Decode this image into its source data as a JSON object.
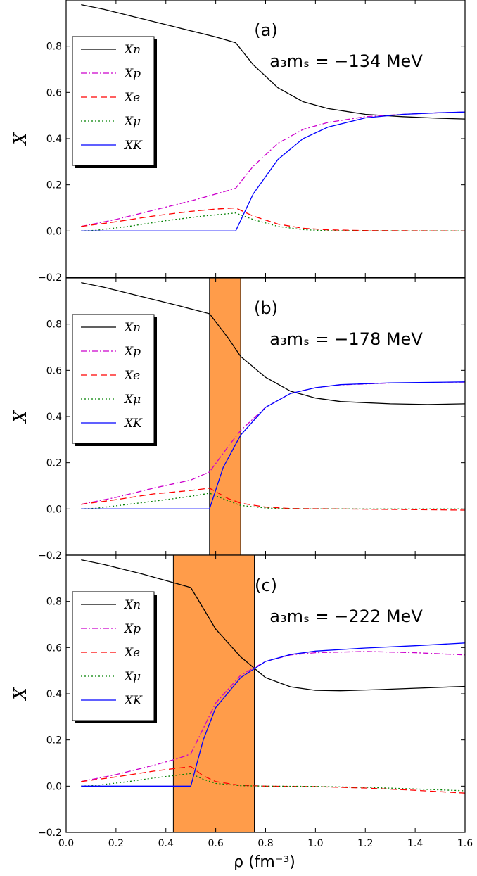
{
  "figure": {
    "xlabel": "ρ (fm⁻³)",
    "band_color": "#FF9C4A",
    "shared_x_ticks": [
      "0.0",
      "0.2",
      "0.4",
      "0.6",
      "0.8",
      "1.0",
      "1.2",
      "1.4",
      "1.6"
    ]
  },
  "chart_data": [
    {
      "type": "line",
      "panel_label": "(a)",
      "annotation": "a₃mₛ = −134 MeV",
      "ylabel": "X",
      "xlim": [
        0.0,
        1.6
      ],
      "ylim": [
        -0.2,
        1.0
      ],
      "y_ticks": [
        "−0.2",
        "0.0",
        "0.2",
        "0.4",
        "0.6",
        "0.8"
      ],
      "legend_position": "upper-left",
      "shaded_band": null,
      "series": [
        {
          "name": "Xn",
          "color": "#000000",
          "dash": "solid",
          "points": [
            [
              0.06,
              0.98
            ],
            [
              0.15,
              0.96
            ],
            [
              0.3,
              0.92
            ],
            [
              0.45,
              0.88
            ],
            [
              0.6,
              0.84
            ],
            [
              0.68,
              0.815
            ],
            [
              0.75,
              0.72
            ],
            [
              0.85,
              0.62
            ],
            [
              0.95,
              0.56
            ],
            [
              1.05,
              0.53
            ],
            [
              1.2,
              0.505
            ],
            [
              1.35,
              0.495
            ],
            [
              1.5,
              0.488
            ],
            [
              1.6,
              0.485
            ]
          ]
        },
        {
          "name": "Xp",
          "color": "#CC00CC",
          "dash": "dashdot",
          "points": [
            [
              0.06,
              0.02
            ],
            [
              0.2,
              0.05
            ],
            [
              0.35,
              0.09
            ],
            [
              0.5,
              0.13
            ],
            [
              0.6,
              0.16
            ],
            [
              0.68,
              0.185
            ],
            [
              0.75,
              0.28
            ],
            [
              0.85,
              0.38
            ],
            [
              0.95,
              0.44
            ],
            [
              1.05,
              0.47
            ],
            [
              1.2,
              0.495
            ],
            [
              1.35,
              0.505
            ],
            [
              1.5,
              0.512
            ],
            [
              1.6,
              0.515
            ]
          ]
        },
        {
          "name": "Xe",
          "color": "#FF0000",
          "dash": "dashed",
          "points": [
            [
              0.06,
              0.02
            ],
            [
              0.2,
              0.04
            ],
            [
              0.35,
              0.065
            ],
            [
              0.5,
              0.085
            ],
            [
              0.6,
              0.095
            ],
            [
              0.68,
              0.1
            ],
            [
              0.75,
              0.065
            ],
            [
              0.85,
              0.03
            ],
            [
              0.95,
              0.012
            ],
            [
              1.05,
              0.005
            ],
            [
              1.2,
              0.002
            ],
            [
              1.4,
              0.001
            ],
            [
              1.6,
              0.0
            ]
          ]
        },
        {
          "name": "Xμ",
          "color": "#008000",
          "dash": "dotted",
          "points": [
            [
              0.06,
              0.0
            ],
            [
              0.12,
              0.003
            ],
            [
              0.25,
              0.02
            ],
            [
              0.4,
              0.045
            ],
            [
              0.55,
              0.065
            ],
            [
              0.68,
              0.078
            ],
            [
              0.75,
              0.05
            ],
            [
              0.85,
              0.02
            ],
            [
              0.95,
              0.006
            ],
            [
              1.05,
              0.001
            ],
            [
              1.2,
              0.0
            ],
            [
              1.6,
              0.0
            ]
          ]
        },
        {
          "name": "XK",
          "color": "#0000FF",
          "dash": "solid",
          "points": [
            [
              0.06,
              0.0
            ],
            [
              0.68,
              0.0
            ],
            [
              0.75,
              0.16
            ],
            [
              0.85,
              0.31
            ],
            [
              0.95,
              0.4
            ],
            [
              1.05,
              0.45
            ],
            [
              1.2,
              0.49
            ],
            [
              1.35,
              0.505
            ],
            [
              1.5,
              0.512
            ],
            [
              1.6,
              0.515
            ]
          ]
        }
      ]
    },
    {
      "type": "line",
      "panel_label": "(b)",
      "annotation": "a₃mₛ = −178 MeV",
      "ylabel": "X",
      "xlim": [
        0.0,
        1.6
      ],
      "ylim": [
        -0.2,
        1.0
      ],
      "y_ticks": [
        "−0.2",
        "0.0",
        "0.2",
        "0.4",
        "0.6",
        "0.8"
      ],
      "legend_position": "upper-left",
      "shaded_band": [
        0.575,
        0.7
      ],
      "series": [
        {
          "name": "Xn",
          "color": "#000000",
          "dash": "solid",
          "points": [
            [
              0.06,
              0.98
            ],
            [
              0.15,
              0.96
            ],
            [
              0.3,
              0.92
            ],
            [
              0.45,
              0.88
            ],
            [
              0.575,
              0.845
            ],
            [
              0.65,
              0.74
            ],
            [
              0.7,
              0.66
            ],
            [
              0.8,
              0.57
            ],
            [
              0.9,
              0.51
            ],
            [
              1.0,
              0.48
            ],
            [
              1.1,
              0.465
            ],
            [
              1.3,
              0.455
            ],
            [
              1.45,
              0.452
            ],
            [
              1.6,
              0.455
            ]
          ]
        },
        {
          "name": "Xp",
          "color": "#CC00CC",
          "dash": "dashdot",
          "points": [
            [
              0.06,
              0.02
            ],
            [
              0.2,
              0.05
            ],
            [
              0.35,
              0.09
            ],
            [
              0.5,
              0.125
            ],
            [
              0.575,
              0.16
            ],
            [
              0.65,
              0.27
            ],
            [
              0.7,
              0.34
            ],
            [
              0.8,
              0.44
            ],
            [
              0.9,
              0.5
            ],
            [
              1.0,
              0.525
            ],
            [
              1.1,
              0.537
            ],
            [
              1.3,
              0.545
            ],
            [
              1.6,
              0.545
            ]
          ]
        },
        {
          "name": "Xe",
          "color": "#FF0000",
          "dash": "dashed",
          "points": [
            [
              0.06,
              0.02
            ],
            [
              0.2,
              0.04
            ],
            [
              0.35,
              0.065
            ],
            [
              0.5,
              0.08
            ],
            [
              0.575,
              0.09
            ],
            [
              0.65,
              0.045
            ],
            [
              0.7,
              0.025
            ],
            [
              0.8,
              0.008
            ],
            [
              0.9,
              0.002
            ],
            [
              1.1,
              0.0
            ],
            [
              1.4,
              -0.003
            ],
            [
              1.6,
              -0.005
            ]
          ]
        },
        {
          "name": "Xμ",
          "color": "#008000",
          "dash": "dotted",
          "points": [
            [
              0.06,
              0.0
            ],
            [
              0.12,
              0.003
            ],
            [
              0.25,
              0.02
            ],
            [
              0.4,
              0.04
            ],
            [
              0.5,
              0.055
            ],
            [
              0.575,
              0.068
            ],
            [
              0.65,
              0.035
            ],
            [
              0.7,
              0.015
            ],
            [
              0.8,
              0.004
            ],
            [
              0.9,
              0.0
            ],
            [
              1.2,
              0.0
            ],
            [
              1.6,
              0.0
            ]
          ]
        },
        {
          "name": "XK",
          "color": "#0000FF",
          "dash": "solid",
          "points": [
            [
              0.06,
              0.0
            ],
            [
              0.575,
              0.0
            ],
            [
              0.63,
              0.18
            ],
            [
              0.7,
              0.32
            ],
            [
              0.8,
              0.44
            ],
            [
              0.9,
              0.5
            ],
            [
              1.0,
              0.525
            ],
            [
              1.1,
              0.538
            ],
            [
              1.3,
              0.546
            ],
            [
              1.6,
              0.55
            ]
          ]
        }
      ]
    },
    {
      "type": "line",
      "panel_label": "(c)",
      "annotation": "a₃mₛ = −222 MeV",
      "ylabel": "X",
      "xlim": [
        0.0,
        1.6
      ],
      "ylim": [
        -0.2,
        1.0
      ],
      "y_ticks": [
        "−0.2",
        "0.0",
        "0.2",
        "0.4",
        "0.6",
        "0.8"
      ],
      "legend_position": "upper-left",
      "shaded_band": [
        0.43,
        0.755
      ],
      "series": [
        {
          "name": "Xn",
          "color": "#000000",
          "dash": "solid",
          "points": [
            [
              0.06,
              0.98
            ],
            [
              0.15,
              0.96
            ],
            [
              0.3,
              0.92
            ],
            [
              0.4,
              0.89
            ],
            [
              0.5,
              0.86
            ],
            [
              0.55,
              0.77
            ],
            [
              0.6,
              0.68
            ],
            [
              0.7,
              0.56
            ],
            [
              0.8,
              0.47
            ],
            [
              0.9,
              0.43
            ],
            [
              1.0,
              0.415
            ],
            [
              1.1,
              0.413
            ],
            [
              1.25,
              0.418
            ],
            [
              1.4,
              0.424
            ],
            [
              1.6,
              0.432
            ]
          ]
        },
        {
          "name": "Xp",
          "color": "#CC00CC",
          "dash": "dashdot",
          "points": [
            [
              0.06,
              0.02
            ],
            [
              0.2,
              0.05
            ],
            [
              0.35,
              0.09
            ],
            [
              0.45,
              0.12
            ],
            [
              0.5,
              0.14
            ],
            [
              0.55,
              0.25
            ],
            [
              0.6,
              0.36
            ],
            [
              0.7,
              0.48
            ],
            [
              0.8,
              0.54
            ],
            [
              0.9,
              0.568
            ],
            [
              1.0,
              0.578
            ],
            [
              1.2,
              0.583
            ],
            [
              1.4,
              0.578
            ],
            [
              1.6,
              0.568
            ]
          ]
        },
        {
          "name": "Xe",
          "color": "#FF0000",
          "dash": "dashed",
          "points": [
            [
              0.06,
              0.02
            ],
            [
              0.2,
              0.04
            ],
            [
              0.35,
              0.065
            ],
            [
              0.45,
              0.078
            ],
            [
              0.5,
              0.085
            ],
            [
              0.55,
              0.045
            ],
            [
              0.6,
              0.02
            ],
            [
              0.7,
              0.003
            ],
            [
              0.8,
              0.0
            ],
            [
              1.0,
              -0.002
            ],
            [
              1.2,
              -0.008
            ],
            [
              1.4,
              -0.018
            ],
            [
              1.6,
              -0.03
            ]
          ]
        },
        {
          "name": "Xμ",
          "color": "#008000",
          "dash": "dotted",
          "points": [
            [
              0.06,
              0.0
            ],
            [
              0.12,
              0.003
            ],
            [
              0.25,
              0.02
            ],
            [
              0.35,
              0.035
            ],
            [
              0.5,
              0.055
            ],
            [
              0.55,
              0.03
            ],
            [
              0.6,
              0.012
            ],
            [
              0.7,
              0.002
            ],
            [
              0.8,
              0.0
            ],
            [
              1.0,
              -0.001
            ],
            [
              1.2,
              -0.005
            ],
            [
              1.4,
              -0.012
            ],
            [
              1.6,
              -0.02
            ]
          ]
        },
        {
          "name": "XK",
          "color": "#0000FF",
          "dash": "solid",
          "points": [
            [
              0.06,
              0.0
            ],
            [
              0.5,
              0.0
            ],
            [
              0.55,
              0.2
            ],
            [
              0.6,
              0.34
            ],
            [
              0.7,
              0.47
            ],
            [
              0.8,
              0.54
            ],
            [
              0.9,
              0.57
            ],
            [
              1.0,
              0.585
            ],
            [
              1.2,
              0.598
            ],
            [
              1.4,
              0.608
            ],
            [
              1.6,
              0.62
            ]
          ]
        }
      ]
    }
  ]
}
